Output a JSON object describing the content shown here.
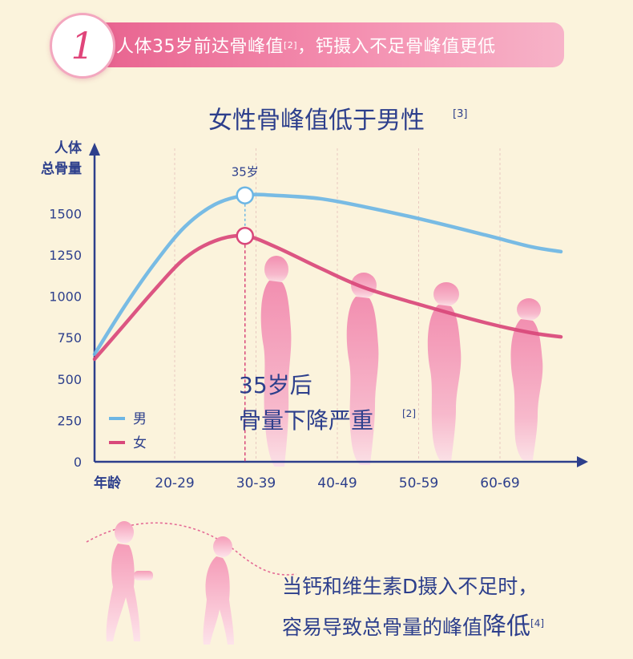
{
  "header": {
    "badge_number": "1",
    "text": "人体35岁前达骨峰值",
    "ref": "[2]",
    "text_after": "，钙摄入不足骨峰值更低"
  },
  "chart_data": {
    "type": "line",
    "title": "女性骨峰值低于男性",
    "title_ref": "[3]",
    "ylabel_line1": "人体",
    "ylabel_line2": "总骨量",
    "xlabel": "年龄",
    "categories": [
      "20-29",
      "30-39",
      "40-49",
      "50-59",
      "60-69"
    ],
    "yticks": [
      0,
      250,
      500,
      750,
      1000,
      1250,
      1500
    ],
    "ylim": [
      0,
      1800
    ],
    "xlim": [
      10,
      41
    ],
    "x_unit": "years of age",
    "series": [
      {
        "name": "男",
        "color": "#6db6e4",
        "x": [
          10,
          12,
          14,
          16,
          18,
          20,
          22,
          25,
          28,
          32,
          36,
          39,
          41
        ],
        "y": [
          650,
          940,
          1200,
          1420,
          1555,
          1610,
          1610,
          1590,
          1540,
          1460,
          1370,
          1300,
          1270
        ]
      },
      {
        "name": "女",
        "color": "#d9487a",
        "x": [
          10,
          12,
          14,
          16,
          18,
          20,
          22,
          25,
          28,
          32,
          36,
          39,
          41
        ],
        "y": [
          620,
          830,
          1040,
          1230,
          1335,
          1365,
          1300,
          1170,
          1050,
          940,
          840,
          780,
          755
        ]
      }
    ],
    "peak": {
      "x": 20,
      "label": "35岁"
    },
    "annotation_line1": "35岁后",
    "annotation_line2": "骨量下降严重",
    "annotation_ref": "[2]",
    "legend_position": "bottom-left"
  },
  "footer": {
    "line1": "当钙和维生素D摄入不足时，",
    "line2_a": "容易导致总骨量的峰值",
    "line2_big": "降低",
    "line2_ref": "[4]"
  },
  "colors": {
    "background": "#fbf3dc",
    "accent_pink": "#e8638f",
    "axis_navy": "#2d3f8c",
    "silhouette_pink": "#f4a6bd"
  }
}
